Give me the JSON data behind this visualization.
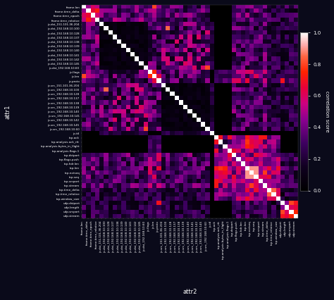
{
  "labels": [
    "frame.len",
    "frame.time_delta",
    "frame.time_epoch",
    "frame.time_relative",
    "ip.dst_151.101.36.204",
    "ip.dst_192.168.10.100",
    "ip.dst_192.168.10.128",
    "ip.dst_192.168.10.137",
    "ip.dst_192.168.10.138",
    "ip.dst_192.168.10.139",
    "ip.dst_192.168.10.140",
    "ip.dst_192.168.10.141",
    "ip.dst_192.168.10.142",
    "ip.dst_192.168.10.145",
    "ip.dst_192.168.10.60",
    "ip.flags",
    "ip.len",
    "ip.proto",
    "ip.src_151.101.36.204",
    "ip.src_192.168.10.100",
    "ip.src_192.168.10.128",
    "ip.src_192.168.10.137",
    "ip.src_192.168.10.138",
    "ip.src_192.168.10.139",
    "ip.src_192.168.10.140",
    "ip.src_192.168.10.141",
    "ip.src_192.168.10.142",
    "ip.src_192.168.10.145",
    "ip.src_192.168.10.60",
    "ip.ttl",
    "tcp.ack",
    "tcp.analysis.ack_rtt",
    "tcp.analysis.bytes_in_flight",
    "tcp.analysis.flags.1",
    "tcp.dstport",
    "tcp.flags.push",
    "tcp.hdr.len",
    "tcp.len",
    "tcp.nxtseq",
    "tcp.seq",
    "tcp.srcport",
    "tcp.stream",
    "tcp.time_delta",
    "tcp.time_relative",
    "tcp.window_size",
    "udp.dstport",
    "udp.length",
    "udp.srcport",
    "udp.stream"
  ],
  "title_x": "attr2",
  "title_y": "attr1",
  "colorbar_ticks": [
    0.0,
    0.2,
    0.4,
    0.6,
    0.8,
    1.0
  ],
  "colorbar_label": "correlation score",
  "bg_color": "#0a0a1a",
  "text_color": "white"
}
